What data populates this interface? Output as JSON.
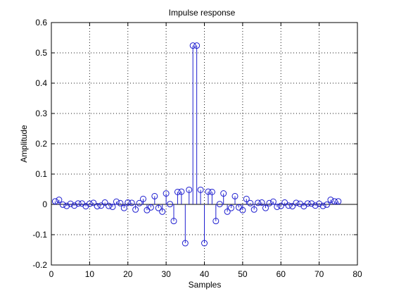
{
  "chart_data": {
    "type": "stem",
    "title": "Impulse response",
    "xlabel": "Samples",
    "ylabel": "Amplitude",
    "xlim": [
      0,
      80
    ],
    "ylim": [
      -0.2,
      0.6
    ],
    "grid": true,
    "color": "#1f1fd0",
    "x_ticks": [
      0,
      10,
      20,
      30,
      40,
      50,
      60,
      70,
      80
    ],
    "y_ticks": [
      -0.2,
      -0.1,
      0,
      0.1,
      0.2,
      0.3,
      0.4,
      0.5,
      0.6
    ],
    "x_tick_labels": [
      "0",
      "10",
      "20",
      "30",
      "40",
      "50",
      "60",
      "70",
      "80"
    ],
    "y_tick_labels": [
      "-0.2",
      "-0.1",
      "0",
      "0.1",
      "0.2",
      "0.3",
      "0.4",
      "0.5",
      "0.6"
    ],
    "series": [
      {
        "x": [
          1,
          2,
          3,
          4,
          5,
          6,
          7,
          8,
          9,
          10,
          11,
          12,
          13,
          14,
          15,
          16,
          17,
          18,
          19,
          20,
          21,
          22,
          23,
          24,
          25,
          26,
          27,
          28,
          29,
          30,
          31,
          32,
          33,
          34,
          35,
          36,
          37,
          38,
          39,
          40,
          41,
          42,
          43,
          44,
          45,
          46,
          47,
          48,
          49,
          50,
          51,
          52,
          53,
          54,
          55,
          56,
          57,
          58,
          59,
          60,
          61,
          62,
          63,
          64,
          65,
          66,
          67,
          68,
          69,
          70,
          71,
          72,
          73,
          74,
          75
        ],
        "values": [
          0.01,
          0.015,
          -0.001,
          -0.005,
          0.002,
          -0.004,
          0.003,
          0.003,
          -0.006,
          0.002,
          0.005,
          -0.006,
          -0.004,
          0.006,
          -0.005,
          -0.008,
          0.009,
          0.004,
          -0.012,
          0.006,
          0.005,
          -0.017,
          0.004,
          0.018,
          -0.019,
          -0.01,
          0.027,
          -0.012,
          -0.024,
          0.036,
          0.001,
          -0.055,
          0.041,
          0.042,
          -0.128,
          0.048,
          0.524,
          0.524,
          0.048,
          -0.128,
          0.042,
          0.041,
          -0.055,
          0.001,
          0.036,
          -0.024,
          -0.012,
          0.027,
          -0.01,
          -0.019,
          0.018,
          0.004,
          -0.017,
          0.005,
          0.006,
          -0.012,
          0.004,
          0.009,
          -0.008,
          -0.005,
          0.006,
          -0.004,
          -0.006,
          0.005,
          0.002,
          -0.006,
          0.003,
          0.003,
          -0.004,
          0.002,
          -0.005,
          -0.001,
          0.015,
          0.01,
          0.01
        ]
      }
    ]
  }
}
